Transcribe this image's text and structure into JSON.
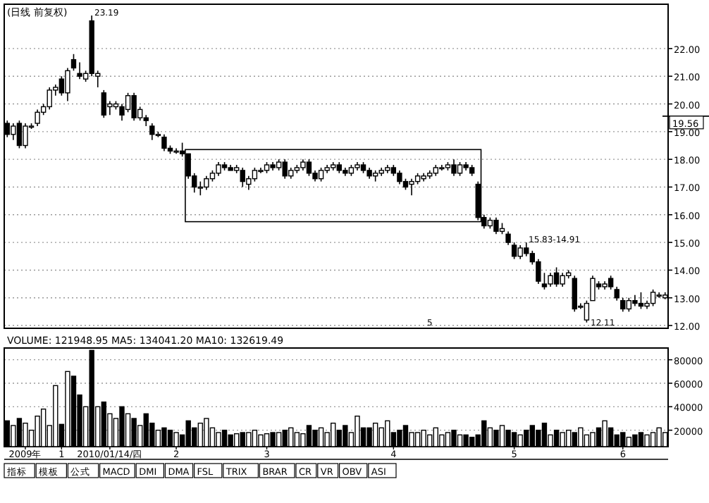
{
  "chart_data": [
    {
      "type": "candlestick",
      "title": "(日线 前复权)",
      "tick_labels": "y",
      "grid": "y",
      "categories": [
        null,
        null,
        null,
        null,
        null,
        null,
        null,
        null,
        null,
        null,
        null,
        null,
        null,
        null,
        null,
        null,
        null,
        null,
        null,
        null,
        null,
        null,
        null,
        null,
        null,
        null,
        null,
        null,
        null,
        null,
        null,
        null,
        null,
        null,
        null,
        null,
        null,
        null,
        null,
        null,
        null,
        null,
        null,
        null,
        null,
        null,
        null,
        null,
        null,
        null,
        null,
        null,
        null,
        null,
        null,
        null,
        null,
        null,
        null,
        null,
        null,
        null,
        null,
        null,
        null,
        null,
        null,
        null,
        null,
        null,
        null,
        null,
        null,
        null,
        null,
        null,
        null,
        null,
        null,
        null,
        null,
        null,
        null,
        null,
        null,
        null,
        null,
        null,
        null,
        null,
        null,
        null,
        null,
        null,
        null,
        null,
        null,
        null,
        null,
        null,
        null,
        null,
        null,
        null,
        null,
        null,
        null,
        null,
        null,
        null
      ],
      "ohlc": [
        [
          19.3,
          19.4,
          18.8,
          18.9
        ],
        [
          18.9,
          19.3,
          18.7,
          19.2
        ],
        [
          19.3,
          19.4,
          18.4,
          18.5
        ],
        [
          18.5,
          19.3,
          18.4,
          19.2
        ],
        [
          19.2,
          19.3,
          19.1,
          19.2
        ],
        [
          19.3,
          19.8,
          19.2,
          19.7
        ],
        [
          19.7,
          20.0,
          19.6,
          19.9
        ],
        [
          19.9,
          20.6,
          19.8,
          20.5
        ],
        [
          20.5,
          20.7,
          20.3,
          20.6
        ],
        [
          20.9,
          21.0,
          20.3,
          20.4
        ],
        [
          20.4,
          21.3,
          20.1,
          21.2
        ],
        [
          21.6,
          21.8,
          21.2,
          21.3
        ],
        [
          21.1,
          21.5,
          20.9,
          21.0
        ],
        [
          20.9,
          21.2,
          20.8,
          21.1
        ],
        [
          23.0,
          23.19,
          21.0,
          21.1
        ],
        [
          21.0,
          21.2,
          20.6,
          21.1
        ],
        [
          20.4,
          20.5,
          19.5,
          19.6
        ],
        [
          19.9,
          20.1,
          19.6,
          20.0
        ],
        [
          19.9,
          20.1,
          19.8,
          20.0
        ],
        [
          19.9,
          20.0,
          19.4,
          19.6
        ],
        [
          19.8,
          20.4,
          19.7,
          20.3
        ],
        [
          20.3,
          20.4,
          19.4,
          19.5
        ],
        [
          19.5,
          19.9,
          19.4,
          19.8
        ],
        [
          19.5,
          19.6,
          19.2,
          19.4
        ],
        [
          19.2,
          19.3,
          18.7,
          18.9
        ],
        [
          18.9,
          19.0,
          18.8,
          18.9
        ],
        [
          18.8,
          18.9,
          18.3,
          18.4
        ],
        [
          18.4,
          18.5,
          18.2,
          18.3
        ],
        [
          18.3,
          18.4,
          18.2,
          18.3
        ],
        [
          18.3,
          18.6,
          18.1,
          18.2
        ],
        [
          18.2,
          18.2,
          17.3,
          17.4
        ],
        [
          17.4,
          17.5,
          16.8,
          17.0
        ],
        [
          17.0,
          17.2,
          16.7,
          17.0
        ],
        [
          17.0,
          17.4,
          16.9,
          17.3
        ],
        [
          17.3,
          17.6,
          17.2,
          17.5
        ],
        [
          17.5,
          17.9,
          17.4,
          17.8
        ],
        [
          17.8,
          17.9,
          17.6,
          17.7
        ],
        [
          17.7,
          17.8,
          17.6,
          17.6
        ],
        [
          17.6,
          17.8,
          17.5,
          17.7
        ],
        [
          17.6,
          17.7,
          17.0,
          17.2
        ],
        [
          17.1,
          17.4,
          16.9,
          17.3
        ],
        [
          17.3,
          17.7,
          17.2,
          17.6
        ],
        [
          17.6,
          17.7,
          17.5,
          17.6
        ],
        [
          17.6,
          17.9,
          17.5,
          17.8
        ],
        [
          17.8,
          17.9,
          17.6,
          17.7
        ],
        [
          17.7,
          18.0,
          17.6,
          17.9
        ],
        [
          17.9,
          18.0,
          17.3,
          17.4
        ],
        [
          17.4,
          17.7,
          17.3,
          17.6
        ],
        [
          17.6,
          17.8,
          17.5,
          17.7
        ],
        [
          17.7,
          18.0,
          17.6,
          17.9
        ],
        [
          17.9,
          18.0,
          17.4,
          17.5
        ],
        [
          17.5,
          17.6,
          17.2,
          17.3
        ],
        [
          17.3,
          17.7,
          17.2,
          17.6
        ],
        [
          17.6,
          17.8,
          17.5,
          17.7
        ],
        [
          17.7,
          17.9,
          17.6,
          17.8
        ],
        [
          17.8,
          17.9,
          17.5,
          17.6
        ],
        [
          17.6,
          17.7,
          17.4,
          17.5
        ],
        [
          17.5,
          17.8,
          17.4,
          17.7
        ],
        [
          17.7,
          17.9,
          17.6,
          17.8
        ],
        [
          17.8,
          17.9,
          17.5,
          17.6
        ],
        [
          17.6,
          17.7,
          17.3,
          17.4
        ],
        [
          17.4,
          17.6,
          17.2,
          17.5
        ],
        [
          17.5,
          17.7,
          17.4,
          17.6
        ],
        [
          17.6,
          17.8,
          17.5,
          17.7
        ],
        [
          17.7,
          17.8,
          17.4,
          17.5
        ],
        [
          17.5,
          17.6,
          17.1,
          17.2
        ],
        [
          17.2,
          17.3,
          16.9,
          17.0
        ],
        [
          17.1,
          17.3,
          16.7,
          17.2
        ],
        [
          17.2,
          17.5,
          17.1,
          17.4
        ],
        [
          17.3,
          17.5,
          17.2,
          17.4
        ],
        [
          17.4,
          17.6,
          17.3,
          17.5
        ],
        [
          17.5,
          17.8,
          17.4,
          17.7
        ],
        [
          17.7,
          17.8,
          17.6,
          17.7
        ],
        [
          17.7,
          17.9,
          17.6,
          17.8
        ],
        [
          17.8,
          18.0,
          17.4,
          17.5
        ],
        [
          17.5,
          17.9,
          17.4,
          17.8
        ],
        [
          17.8,
          17.9,
          17.6,
          17.7
        ],
        [
          17.7,
          17.8,
          17.4,
          17.5
        ],
        [
          17.1,
          17.2,
          15.8,
          15.9
        ],
        [
          15.9,
          16.0,
          15.5,
          15.6
        ],
        [
          15.6,
          15.9,
          15.5,
          15.8
        ],
        [
          15.8,
          15.9,
          15.3,
          15.4
        ],
        [
          15.4,
          15.7,
          15.3,
          15.5
        ],
        [
          15.3,
          15.4,
          14.91,
          15.0
        ],
        [
          14.9,
          15.0,
          14.4,
          14.5
        ],
        [
          14.5,
          14.9,
          14.4,
          14.8
        ],
        [
          14.8,
          15.0,
          14.5,
          14.6
        ],
        [
          14.6,
          14.7,
          14.2,
          14.3
        ],
        [
          14.3,
          14.4,
          13.5,
          13.6
        ],
        [
          13.5,
          13.9,
          13.3,
          13.4
        ],
        [
          13.5,
          13.9,
          13.4,
          13.8
        ],
        [
          13.9,
          14.1,
          13.4,
          13.5
        ],
        [
          13.5,
          13.9,
          13.4,
          13.8
        ],
        [
          13.8,
          14.0,
          13.7,
          13.9
        ],
        [
          13.7,
          13.8,
          12.5,
          12.6
        ],
        [
          12.7,
          12.8,
          12.6,
          12.7
        ],
        [
          12.2,
          12.9,
          12.11,
          12.8
        ],
        [
          12.9,
          13.8,
          12.9,
          13.7
        ],
        [
          13.5,
          13.6,
          13.3,
          13.4
        ],
        [
          13.4,
          13.6,
          13.3,
          13.5
        ],
        [
          13.7,
          13.8,
          13.3,
          13.4
        ],
        [
          13.3,
          13.4,
          12.9,
          13.0
        ],
        [
          12.9,
          13.0,
          12.5,
          12.6
        ],
        [
          12.6,
          13.0,
          12.5,
          12.9
        ],
        [
          12.9,
          13.1,
          12.7,
          12.8
        ],
        [
          12.8,
          13.2,
          12.6,
          12.7
        ],
        [
          12.7,
          12.9,
          12.6,
          12.8
        ],
        [
          12.8,
          13.3,
          12.7,
          13.2
        ],
        [
          13.1,
          13.2,
          13.0,
          13.1
        ],
        [
          13.0,
          13.2,
          12.95,
          13.1
        ]
      ],
      "ylim": [
        11.9,
        23.6
      ],
      "yticks": [
        {
          "value": 12,
          "label": "12.00"
        },
        {
          "value": 13,
          "label": "13.00"
        },
        {
          "value": 14,
          "label": "14.00"
        },
        {
          "value": 15,
          "label": "15.00"
        },
        {
          "value": 16,
          "label": "16.00"
        },
        {
          "value": 17,
          "label": "17.00"
        },
        {
          "value": 18,
          "label": "18.00"
        },
        {
          "value": 19,
          "label": "19.00"
        },
        {
          "value": 20,
          "label": "20.00"
        },
        {
          "value": 21,
          "label": "21.00"
        },
        {
          "value": 22,
          "label": "22.00"
        }
      ],
      "ref_lines": [
        {
          "axis": "y",
          "value": 19.56,
          "label": "19.56"
        }
      ],
      "annotations": [
        "23.19",
        "15.83-14.91",
        "12.11",
        "5"
      ]
    },
    {
      "type": "bar",
      "title": "VOLUME: 121948.95  MA5: 134041.20  MA10: 132619.49",
      "grid": "y",
      "categories": [
        null,
        null,
        null,
        "2009年",
        null,
        null,
        null,
        null,
        null,
        "1",
        null,
        null,
        null,
        null,
        null,
        null,
        null,
        "2010/01/14/四",
        null,
        null,
        null,
        null,
        null,
        null,
        null,
        null,
        null,
        null,
        "2",
        null,
        null,
        null,
        null,
        null,
        null,
        null,
        null,
        null,
        null,
        null,
        null,
        null,
        null,
        "3",
        null,
        null,
        null,
        null,
        null,
        null,
        null,
        null,
        null,
        null,
        null,
        null,
        null,
        null,
        null,
        null,
        null,
        null,
        null,
        null,
        "4",
        null,
        null,
        null,
        null,
        null,
        null,
        null,
        null,
        null,
        null,
        null,
        null,
        null,
        null,
        null,
        null,
        null,
        null,
        null,
        "5",
        null,
        null,
        null,
        null,
        null,
        null,
        null,
        null,
        null,
        null,
        null,
        null,
        null,
        null,
        null,
        null,
        null,
        "6",
        null,
        null,
        null,
        null,
        null,
        null,
        null
      ],
      "values": [
        28000,
        24000,
        30000,
        26000,
        20000,
        32000,
        38000,
        24000,
        58000,
        25000,
        70000,
        66000,
        50000,
        40000,
        88000,
        40000,
        44000,
        34000,
        30000,
        40000,
        34000,
        30000,
        24000,
        34000,
        26000,
        20000,
        22000,
        20000,
        18000,
        16000,
        28000,
        22000,
        26000,
        30000,
        22000,
        18000,
        20000,
        16000,
        17000,
        18000,
        18000,
        20000,
        16000,
        17000,
        18000,
        18000,
        20000,
        22000,
        18000,
        17000,
        24000,
        20000,
        22000,
        18000,
        26000,
        20000,
        24000,
        18000,
        32000,
        22000,
        22000,
        26000,
        22000,
        28000,
        18000,
        20000,
        24000,
        18000,
        18000,
        20000,
        16000,
        22000,
        16000,
        18000,
        20000,
        16000,
        16000,
        14000,
        16000,
        28000,
        22000,
        20000,
        24000,
        20000,
        18000,
        16000,
        20000,
        24000,
        20000,
        26000,
        16000,
        20000,
        18000,
        20000,
        18000,
        22000,
        16000,
        18000,
        22000,
        28000,
        22000,
        16000,
        18000,
        14000,
        16000,
        18000,
        16000,
        18000,
        22000,
        18000
      ],
      "ylim": [
        6000,
        90000
      ],
      "yticks": [
        20000,
        40000,
        60000,
        80000
      ],
      "annotations": [
        "指标",
        "模板",
        "公式",
        "MACD",
        "DMI",
        "DMA",
        "FSL",
        "TRIX",
        "BRAR",
        "CR",
        "VR",
        "OBV",
        "ASI"
      ]
    }
  ]
}
